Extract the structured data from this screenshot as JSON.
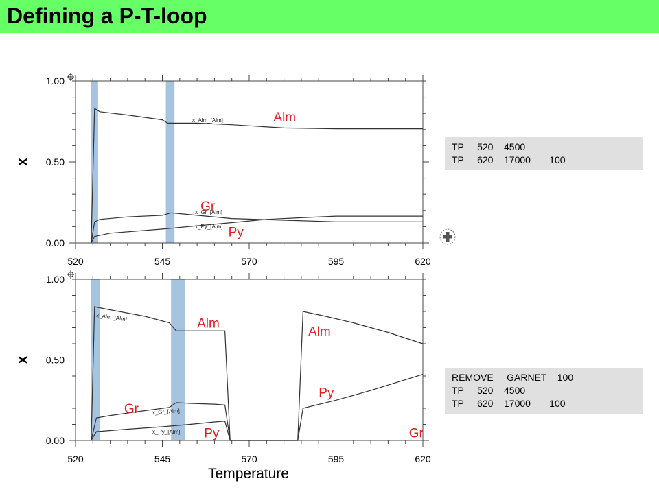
{
  "title": "Defining a P-T-loop",
  "command_boxes": [
    {
      "lines": [
        "TP     520    4500",
        "TP     620    17000       100"
      ]
    },
    {
      "lines": [
        "REMOVE     GARNET    100",
        "TP     520    4500",
        "TP     620    17000       100"
      ]
    }
  ],
  "colors": {
    "title_bg": "#66ff66",
    "highlight": "#a6c4e0",
    "annotation": "#e02020",
    "line": "#333333",
    "command_bg": "#e0e0e0"
  },
  "icons": [
    "menu-toggle-icon",
    "rotate-icon"
  ],
  "chart_data": [
    {
      "type": "line",
      "xlabel": "",
      "ylabel": "X",
      "xlim": [
        520,
        620
      ],
      "ylim": [
        0,
        1
      ],
      "xticks": [
        "520",
        "545",
        "570",
        "595",
        "620"
      ],
      "yticks": [
        "0.00",
        "0.50",
        "1.00"
      ],
      "highlights": [
        [
          524.5,
          526.5
        ],
        [
          546,
          548.5
        ]
      ],
      "series": [
        {
          "name": "x_Alm_[Alm]",
          "x": [
            524.5,
            525.5,
            527,
            535,
            545,
            546.5,
            555,
            565,
            580,
            595,
            610,
            620
          ],
          "y": [
            0.0,
            0.83,
            0.81,
            0.79,
            0.76,
            0.74,
            0.74,
            0.73,
            0.71,
            0.705,
            0.705,
            0.705
          ]
        },
        {
          "name": "x_Gr_[Alm]",
          "x": [
            524.5,
            525.5,
            527,
            535,
            545,
            547.5,
            555,
            565,
            580,
            595,
            610,
            620
          ],
          "y": [
            0.0,
            0.13,
            0.145,
            0.16,
            0.17,
            0.185,
            0.17,
            0.15,
            0.14,
            0.13,
            0.13,
            0.13
          ]
        },
        {
          "name": "x_Py_[Alm]",
          "x": [
            524.5,
            525.5,
            530,
            545,
            555,
            565,
            575,
            585,
            595,
            610,
            620
          ],
          "y": [
            0.0,
            0.04,
            0.06,
            0.085,
            0.105,
            0.125,
            0.145,
            0.155,
            0.165,
            0.165,
            0.165
          ]
        }
      ],
      "annotations": [
        {
          "text": "Alm",
          "x": 577,
          "y": 0.75
        },
        {
          "text": "Gr",
          "x": 556,
          "y": 0.2
        },
        {
          "text": "Py",
          "x": 564,
          "y": 0.04
        }
      ]
    },
    {
      "type": "line",
      "xlabel": "Temperature",
      "ylabel": "X",
      "xlim": [
        520,
        620
      ],
      "ylim": [
        0,
        1
      ],
      "xticks": [
        "520",
        "545",
        "570",
        "595",
        "620"
      ],
      "yticks": [
        "0.00",
        "0.50",
        "1.00"
      ],
      "highlights": [
        [
          524.5,
          527
        ],
        [
          547.5,
          551.5
        ]
      ],
      "series": [
        {
          "name": "x_Alm_[Alm]",
          "x": [
            524.5,
            525.5,
            530,
            540,
            547,
            549,
            553,
            560,
            563,
            564.5,
            584,
            585.5,
            592,
            600,
            610,
            620
          ],
          "y": [
            0.0,
            0.83,
            0.81,
            0.77,
            0.73,
            0.68,
            0.68,
            0.68,
            0.68,
            0.0,
            0.0,
            0.8,
            0.77,
            0.73,
            0.67,
            0.6
          ]
        },
        {
          "name": "x_Gr_[Alm]",
          "x": [
            524.5,
            526,
            530,
            540,
            547,
            549,
            553,
            560,
            563,
            564.5
          ],
          "y": [
            0.0,
            0.14,
            0.155,
            0.185,
            0.205,
            0.235,
            0.23,
            0.225,
            0.22,
            0.0
          ]
        },
        {
          "name": "x_Py_[Alm]",
          "x": [
            524.5,
            526,
            535,
            545,
            553,
            560,
            563,
            564.5,
            584,
            585.5,
            595,
            605,
            620
          ],
          "y": [
            0.0,
            0.055,
            0.07,
            0.085,
            0.1,
            0.115,
            0.12,
            0.0,
            0.0,
            0.2,
            0.25,
            0.31,
            0.41
          ]
        }
      ],
      "annotations": [
        {
          "text": "Alm",
          "x": 555,
          "y": 0.7
        },
        {
          "text": "Alm",
          "x": 587,
          "y": 0.65
        },
        {
          "text": "Py",
          "x": 590,
          "y": 0.27
        },
        {
          "text": "Gr",
          "x": 534,
          "y": 0.17
        },
        {
          "text": "Py",
          "x": 557,
          "y": 0.02
        },
        {
          "text": "Gr",
          "x": 616,
          "y": 0.02
        }
      ]
    }
  ]
}
